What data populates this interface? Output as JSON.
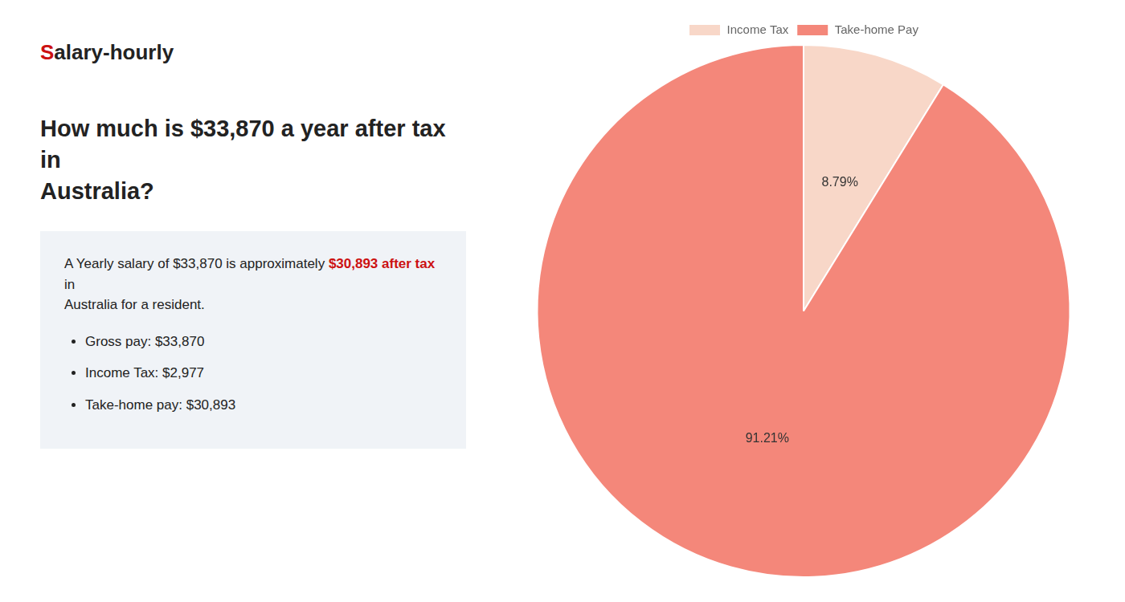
{
  "chart_data": {
    "type": "pie",
    "title": "How much is $33,870 a year after tax in\nAustralia?",
    "categories": [
      "Income Tax",
      "Take-home Pay"
    ],
    "values": [
      8.79,
      91.21
    ],
    "value_labels": [
      "8.79%",
      "91.21%"
    ],
    "colors": [
      "#f8d7c8",
      "#f4877a"
    ],
    "data_labels": true,
    "legend": "top",
    "annotations": [
      [
        {
          "text": "S",
          "color": "#cc1111"
        },
        "alary-hourly"
      ],
      [
        "A Yearly salary of $33,870 is approximately ",
        {
          "text": "$30,893 after tax",
          "color": "#cc1111"
        },
        " in"
      ],
      [
        "Australia for a resident."
      ],
      [
        "Gross pay: $33,870"
      ],
      [
        "Income Tax: $2,977"
      ],
      [
        "Take-home pay: $30,893"
      ]
    ]
  }
}
